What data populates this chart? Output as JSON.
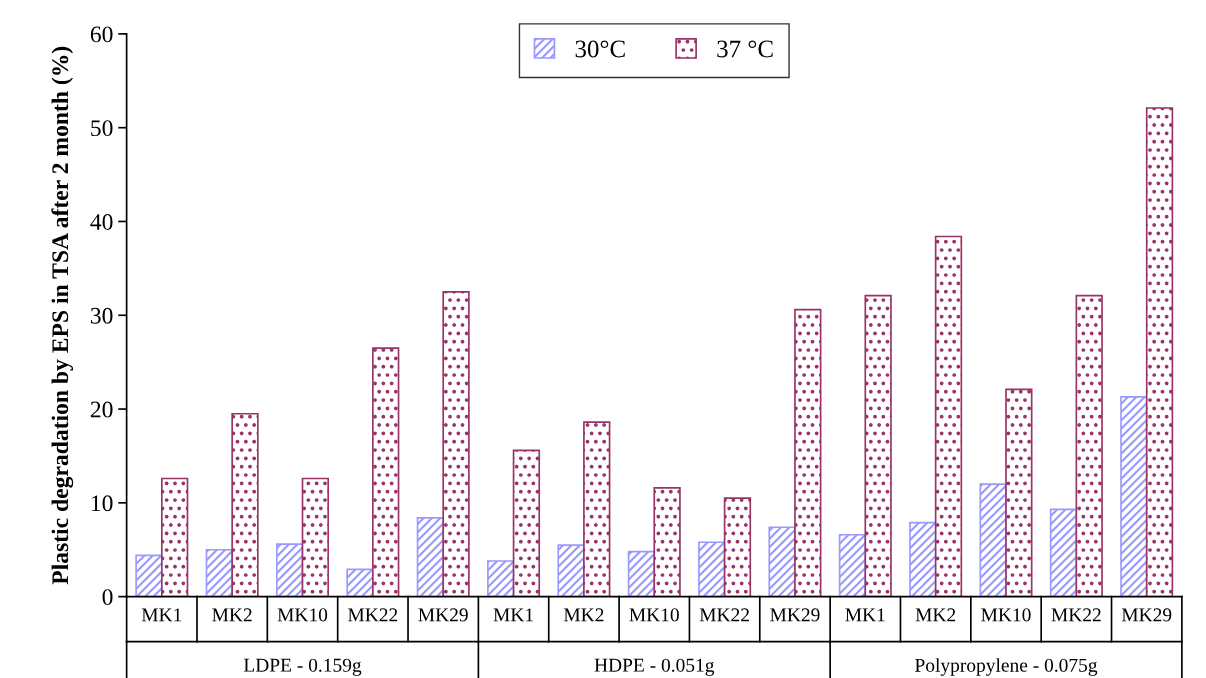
{
  "chart_data": {
    "type": "bar",
    "ylabel": "Plastic degradation by EPS in TSA after 2 month (%)",
    "categories": [
      "MK1",
      "MK2",
      "MK10",
      "MK22",
      "MK29",
      "MK1",
      "MK2",
      "MK10",
      "MK22",
      "MK29",
      "MK1",
      "MK2",
      "MK10",
      "MK22",
      "MK29"
    ],
    "series": [
      {
        "name": "30°C",
        "color": "#9999ff",
        "values": [
          4.4,
          5.0,
          5.6,
          2.9,
          8.4,
          3.8,
          5.5,
          4.8,
          5.8,
          7.4,
          6.6,
          7.9,
          12.0,
          9.3,
          21.3
        ]
      },
      {
        "name": "37 °C",
        "color": "#993366",
        "values": [
          12.6,
          19.5,
          12.6,
          26.5,
          32.5,
          15.6,
          18.6,
          11.6,
          10.5,
          30.6,
          32.1,
          38.4,
          22.1,
          32.1,
          52.1
        ]
      }
    ],
    "annotations": [
      "LDPE - 0.159g",
      "HDPE - 0.051g",
      "Polypropylene - 0.075g"
    ],
    "ylim": [
      0,
      60
    ],
    "yticks": [
      0,
      10,
      20,
      30,
      40,
      50,
      60
    ],
    "grid": false,
    "legend": "top"
  }
}
